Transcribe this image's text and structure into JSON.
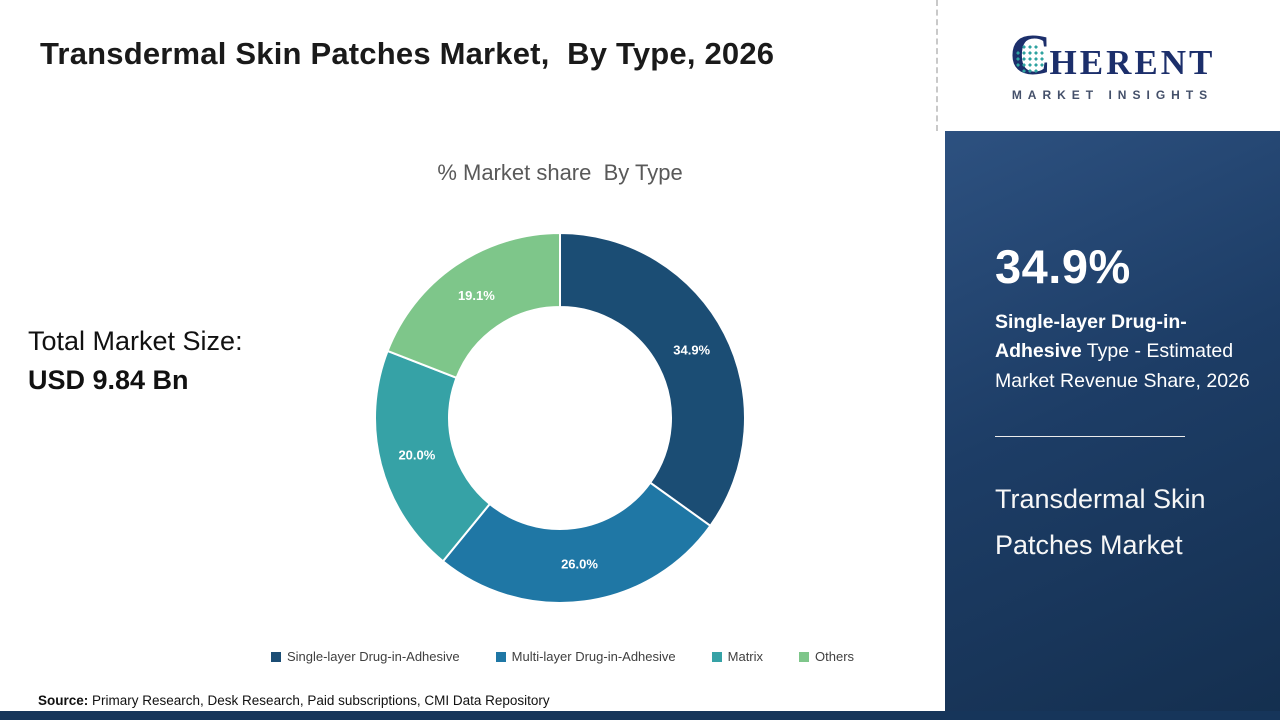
{
  "header": {
    "title": "Transdermal Skin Patches Market,  By Type, 2026"
  },
  "logo": {
    "c": "C",
    "rest": "HERENT",
    "line2": "MARKET INSIGHTS"
  },
  "chart_data": {
    "type": "pie",
    "donut": true,
    "title": "% Market share  By Type",
    "categories": [
      "Single-layer Drug-in-Adhesive",
      "Multi-layer Drug-in-Adhesive",
      "Matrix",
      "Others"
    ],
    "values": [
      34.9,
      26.0,
      20.0,
      19.1
    ],
    "labels": [
      "34.9%",
      "26.0%",
      "20.0%",
      "19.1%"
    ],
    "colors": [
      "#1b4d74",
      "#1f77a5",
      "#36a2a6",
      "#7ec68a"
    ],
    "legend_position": "bottom",
    "start_angle_deg": 0,
    "direction": "clockwise"
  },
  "market_size": {
    "label": "Total Market Size:",
    "value": "USD 9.84 Bn"
  },
  "sidebar": {
    "stat_value": "34.9%",
    "stat_bold": "Single-layer Drug-in-Adhesive",
    "stat_rest": " Type - Estimated Market Revenue Share, 2026",
    "market_name_line1": "Transdermal Skin",
    "market_name_line2": "Patches Market"
  },
  "source": {
    "label": "Source:",
    "text": " Primary Research, Desk Research, Paid subscriptions, CMI Data Repository"
  }
}
